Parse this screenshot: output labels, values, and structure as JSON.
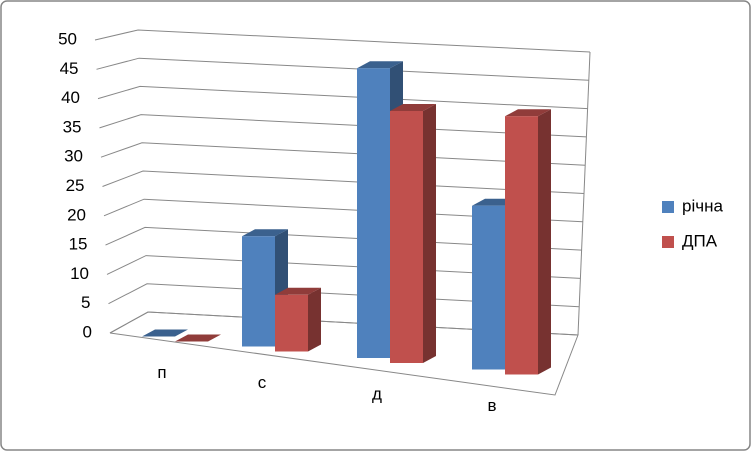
{
  "chart_data": {
    "type": "bar",
    "categories": [
      "п",
      "с",
      "д",
      "в"
    ],
    "series": [
      {
        "name": "річна",
        "color": "#4f81bd",
        "values": [
          0,
          17.5,
          46,
          26
        ]
      },
      {
        "name": "ДПА",
        "color": "#c0504d",
        "values": [
          0,
          9,
          40,
          41
        ]
      }
    ],
    "ylim": [
      0,
      50
    ],
    "yticks": [
      0,
      5,
      10,
      15,
      20,
      25,
      30,
      35,
      40,
      45,
      50
    ],
    "grid": true,
    "legend": "right"
  }
}
